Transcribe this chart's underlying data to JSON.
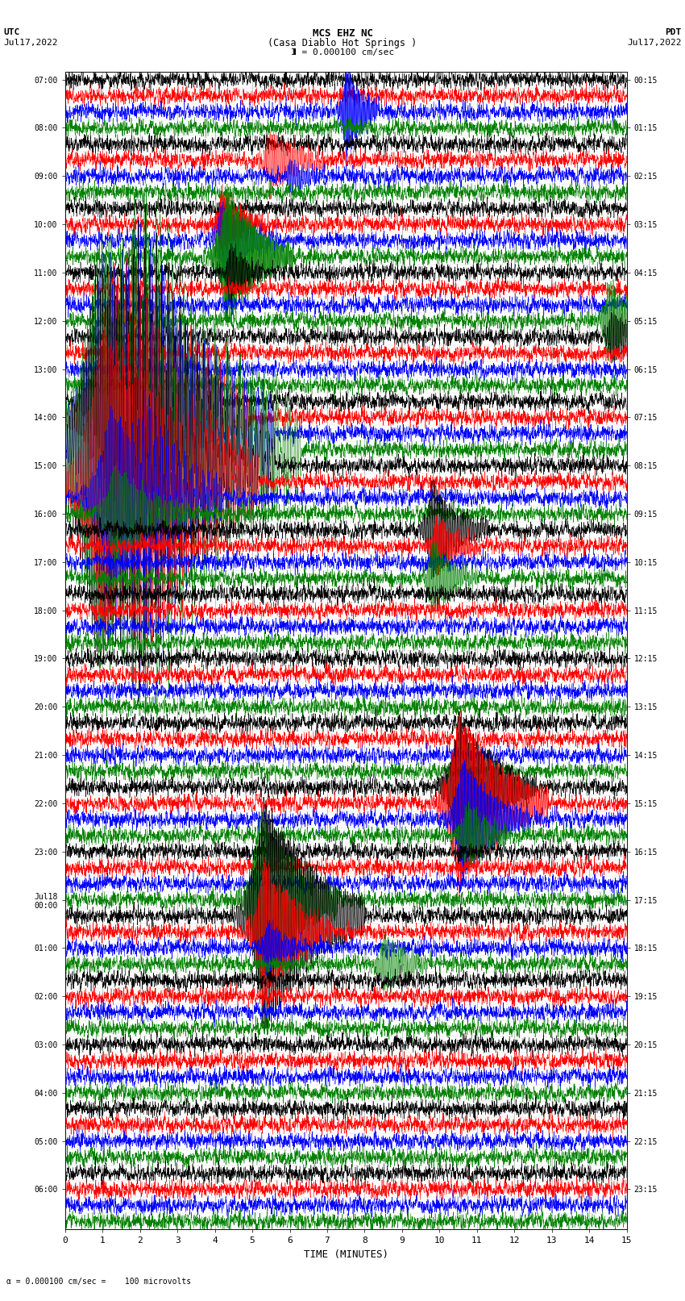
{
  "title_line1": "MCS EHZ NC",
  "title_line2": "(Casa Diablo Hot Springs )",
  "scale_label": "I = 0.000100 cm/sec",
  "bottom_label": "a = 0.000100 cm/sec =    100 microvolts",
  "xlabel": "TIME (MINUTES)",
  "xticks": [
    0,
    1,
    2,
    3,
    4,
    5,
    6,
    7,
    8,
    9,
    10,
    11,
    12,
    13,
    14,
    15
  ],
  "left_times": [
    "07:00",
    "",
    "",
    "08:00",
    "",
    "",
    "09:00",
    "",
    "",
    "10:00",
    "",
    "",
    "11:00",
    "",
    "",
    "12:00",
    "",
    "",
    "13:00",
    "",
    "",
    "14:00",
    "",
    "",
    "15:00",
    "",
    "",
    "16:00",
    "",
    "",
    "17:00",
    "",
    "",
    "18:00",
    "",
    "",
    "19:00",
    "",
    "",
    "20:00",
    "",
    "",
    "21:00",
    "",
    "",
    "22:00",
    "",
    "",
    "23:00",
    "",
    "",
    "Jul18\n00:00",
    "",
    "",
    "01:00",
    "",
    "",
    "02:00",
    "",
    "",
    "03:00",
    "",
    "",
    "04:00",
    "",
    "",
    "05:00",
    "",
    "",
    "06:00",
    "",
    ""
  ],
  "right_times": [
    "00:15",
    "",
    "",
    "01:15",
    "",
    "",
    "02:15",
    "",
    "",
    "03:15",
    "",
    "",
    "04:15",
    "",
    "",
    "05:15",
    "",
    "",
    "06:15",
    "",
    "",
    "07:15",
    "",
    "",
    "08:15",
    "",
    "",
    "09:15",
    "",
    "",
    "10:15",
    "",
    "",
    "11:15",
    "",
    "",
    "12:15",
    "",
    "",
    "13:15",
    "",
    "",
    "14:15",
    "",
    "",
    "15:15",
    "",
    "",
    "16:15",
    "",
    "",
    "17:15",
    "",
    "",
    "18:15",
    "",
    "",
    "19:15",
    "",
    "",
    "20:15",
    "",
    "",
    "21:15",
    "",
    "",
    "22:15",
    "",
    "",
    "23:15",
    "",
    ""
  ],
  "colors_cycle": [
    "black",
    "red",
    "blue",
    "green"
  ],
  "n_rows": 72,
  "n_points": 3000,
  "fig_width": 8.5,
  "fig_height": 16.13,
  "bg_color": "white",
  "grid_color": "#777777",
  "noise_amp": 0.18,
  "seed": 12345
}
